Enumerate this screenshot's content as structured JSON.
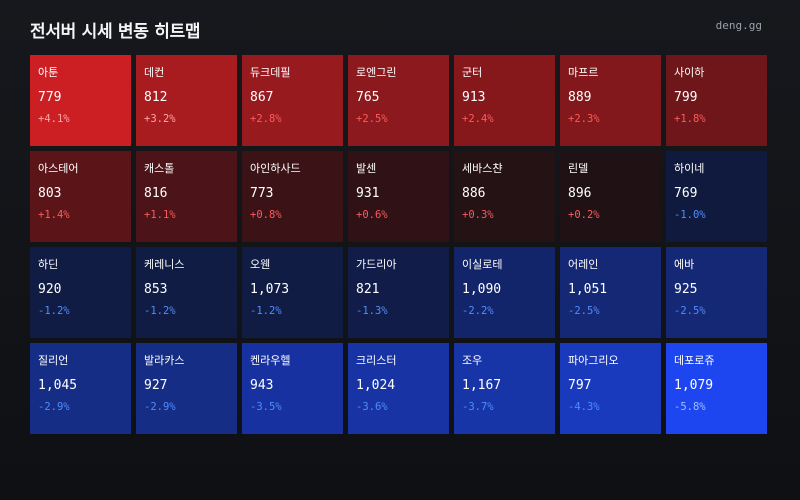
{
  "header": {
    "title": "전서버 시세 변동 히트맵",
    "brand": "deng.gg"
  },
  "colors": {
    "up_text": "#ff5a5a",
    "down_text": "#4f8cff"
  },
  "tiles": [
    {
      "name": "아툰",
      "price": "779",
      "change": "+4.1%",
      "bg": "#cc1f24",
      "change_class": "up-light"
    },
    {
      "name": "데컨",
      "price": "812",
      "change": "+3.2%",
      "bg": "#a81b1f",
      "change_class": "up-light"
    },
    {
      "name": "듀크데필",
      "price": "867",
      "change": "+2.8%",
      "bg": "#961a1e",
      "change_class": "up"
    },
    {
      "name": "로엔그린",
      "price": "765",
      "change": "+2.5%",
      "bg": "#8b191d",
      "change_class": "up"
    },
    {
      "name": "군터",
      "price": "913",
      "change": "+2.4%",
      "bg": "#86181c",
      "change_class": "up"
    },
    {
      "name": "마프르",
      "price": "889",
      "change": "+2.3%",
      "bg": "#82181b",
      "change_class": "up"
    },
    {
      "name": "사이하",
      "price": "799",
      "change": "+1.8%",
      "bg": "#6e161a",
      "change_class": "up"
    },
    {
      "name": "아스테어",
      "price": "803",
      "change": "+1.4%",
      "bg": "#5b1519",
      "change_class": "up"
    },
    {
      "name": "캐스톨",
      "price": "816",
      "change": "+1.1%",
      "bg": "#4c1418",
      "change_class": "up"
    },
    {
      "name": "아인하사드",
      "price": "773",
      "change": "+0.8%",
      "bg": "#3b1317",
      "change_class": "up"
    },
    {
      "name": "발센",
      "price": "931",
      "change": "+0.6%",
      "bg": "#301216",
      "change_class": "up"
    },
    {
      "name": "세바스챤",
      "price": "886",
      "change": "+0.3%",
      "bg": "#241215",
      "change_class": "up"
    },
    {
      "name": "린델",
      "price": "896",
      "change": "+0.2%",
      "bg": "#1f1114",
      "change_class": "up"
    },
    {
      "name": "하이네",
      "price": "769",
      "change": "-1.0%",
      "bg": "#0f1a3e",
      "change_class": "down"
    },
    {
      "name": "하딘",
      "price": "920",
      "change": "-1.2%",
      "bg": "#101c44",
      "change_class": "down"
    },
    {
      "name": "케레니스",
      "price": "853",
      "change": "-1.2%",
      "bg": "#101c44",
      "change_class": "down"
    },
    {
      "name": "오웬",
      "price": "1,073",
      "change": "-1.2%",
      "bg": "#101c44",
      "change_class": "down"
    },
    {
      "name": "가드리아",
      "price": "821",
      "change": "-1.3%",
      "bg": "#111d48",
      "change_class": "down"
    },
    {
      "name": "이실로테",
      "price": "1,090",
      "change": "-2.2%",
      "bg": "#13256a",
      "change_class": "down"
    },
    {
      "name": "어레인",
      "price": "1,051",
      "change": "-2.5%",
      "bg": "#142875",
      "change_class": "down"
    },
    {
      "name": "에바",
      "price": "925",
      "change": "-2.5%",
      "bg": "#142875",
      "change_class": "down"
    },
    {
      "name": "질리언",
      "price": "1,045",
      "change": "-2.9%",
      "bg": "#152d84",
      "change_class": "down"
    },
    {
      "name": "발라카스",
      "price": "927",
      "change": "-2.9%",
      "bg": "#152d84",
      "change_class": "down"
    },
    {
      "name": "켄라우헬",
      "price": "943",
      "change": "-3.5%",
      "bg": "#1732a0",
      "change_class": "down"
    },
    {
      "name": "크리스터",
      "price": "1,024",
      "change": "-3.6%",
      "bg": "#1733a4",
      "change_class": "down"
    },
    {
      "name": "조우",
      "price": "1,167",
      "change": "-3.7%",
      "bg": "#1835a8",
      "change_class": "down"
    },
    {
      "name": "파아그리오",
      "price": "797",
      "change": "-4.3%",
      "bg": "#1a3abd",
      "change_class": "down"
    },
    {
      "name": "데포로쥬",
      "price": "1,079",
      "change": "-5.8%",
      "bg": "#1d46f0",
      "change_class": "down-light"
    }
  ]
}
